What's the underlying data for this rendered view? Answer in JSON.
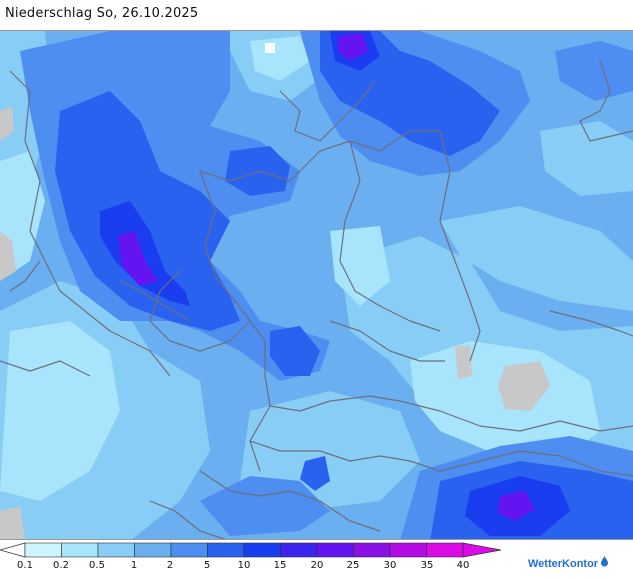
{
  "header": {
    "title": "Niederschlag So, 26.10.2025"
  },
  "legend": {
    "labels": [
      "0.1",
      "0.2",
      "0.5",
      "1",
      "2",
      "5",
      "10",
      "15",
      "20",
      "25",
      "30",
      "35",
      "40"
    ],
    "colors": [
      "#ccf5ff",
      "#a8e4fb",
      "#88cdf5",
      "#6aaff0",
      "#4d8ef0",
      "#2a62f0",
      "#1a3df0",
      "#3a24ee",
      "#6314f0",
      "#8a10e6",
      "#b40ce6",
      "#dc0ae6"
    ],
    "low_color": "#ffffff",
    "high_color": "#dc0ae6"
  },
  "branding": {
    "name": "WetterKontor"
  },
  "colors": {
    "no_precip": "#c8c8c8",
    "border_lines": "#6e6e7e"
  }
}
